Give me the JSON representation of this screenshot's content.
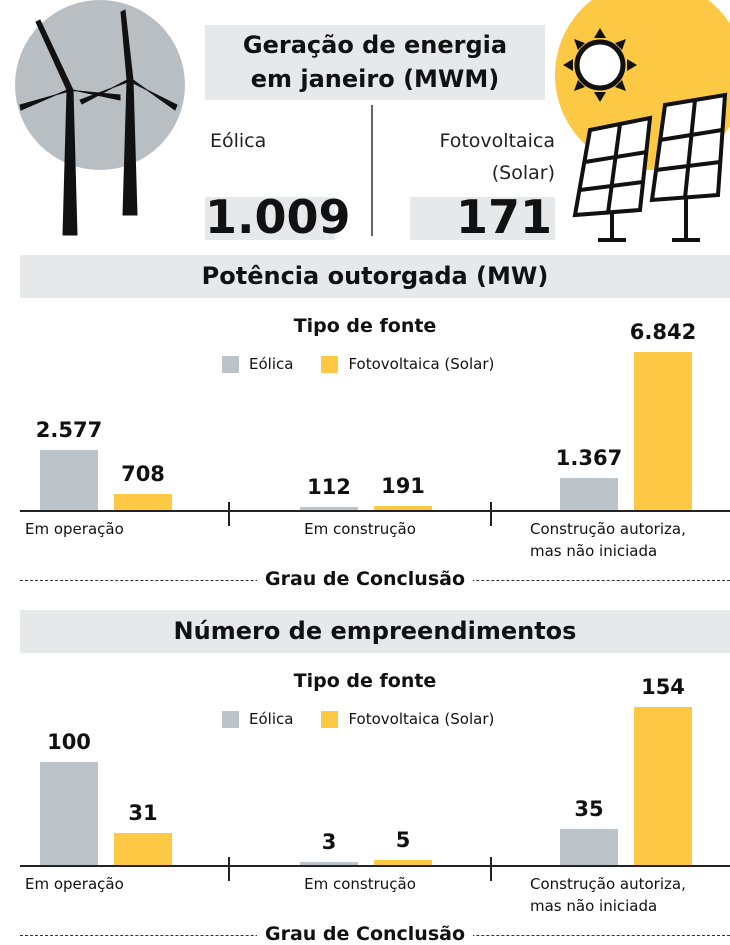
{
  "header": {
    "title": "Geração de energia em janeiro (MWM)",
    "kpis": [
      {
        "label": "Eólica",
        "value": "1.009"
      },
      {
        "label": "Fotovoltaica (Solar)",
        "value": "171"
      }
    ]
  },
  "chart_data": [
    {
      "type": "bar",
      "title": "Potência outorgada (MW)",
      "legend_title": "Tipo de fonte",
      "x_label": "Grau de Conclusão",
      "categories": [
        "Em operação",
        "Em construção",
        "Construção autoriza, mas não iniciada"
      ],
      "series": [
        {
          "name": "Eólica",
          "color": "#bcc3c9",
          "values": [
            2577,
            112,
            1367
          ],
          "value_labels": [
            "2.577",
            "112",
            "1.367"
          ]
        },
        {
          "name": "Fotovoltaica (Solar)",
          "color": "#fdc843",
          "values": [
            708,
            191,
            6842
          ],
          "value_labels": [
            "708",
            "191",
            "6.842"
          ]
        }
      ]
    },
    {
      "type": "bar",
      "title": "Número de empreendimentos",
      "legend_title": "Tipo de fonte",
      "x_label": "Grau de Conclusão",
      "categories": [
        "Em operação",
        "Em construção",
        "Construção autoriza, mas não iniciada"
      ],
      "series": [
        {
          "name": "Eólica",
          "color": "#bcc3c9",
          "values": [
            100,
            3,
            35
          ]
        },
        {
          "name": "Fotovoltaica (Solar)",
          "color": "#fdc843",
          "values": [
            31,
            5,
            154
          ]
        }
      ]
    }
  ]
}
